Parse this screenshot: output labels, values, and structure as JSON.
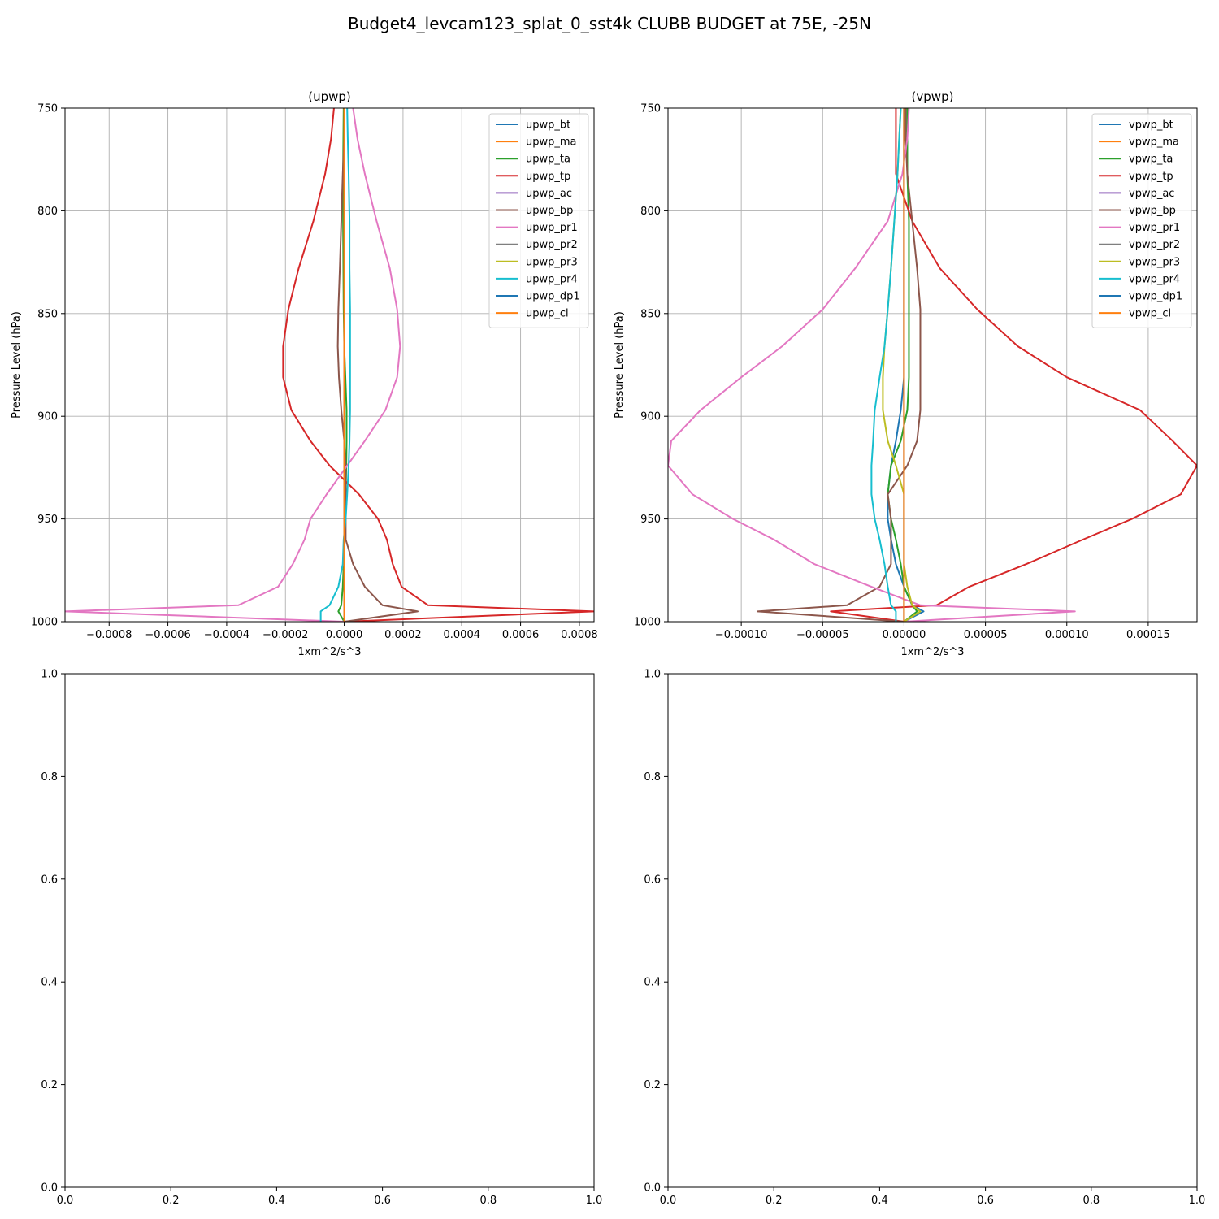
{
  "figure": {
    "suptitle": "Budget4_levcam123_splat_0_sst4k CLUBB BUDGET at 75E, -25N"
  },
  "colors": [
    "#1f77b4",
    "#ff7f0e",
    "#2ca02c",
    "#d62728",
    "#9467bd",
    "#8c564b",
    "#e377c2",
    "#7f7f7f",
    "#bcbd22",
    "#17becf",
    "#1f77b4",
    "#ff7f0e"
  ],
  "chart_data": [
    {
      "type": "line",
      "title": "(upwp)",
      "xlabel": "1xm^2/s^3",
      "ylabel": "Pressure Level (hPa)",
      "xlim": [
        -0.00095,
        0.00085
      ],
      "ylim": [
        1000,
        750
      ],
      "y_inverted": true,
      "grid": true,
      "legend": "top-right",
      "xticks": [
        -0.0008,
        -0.0006,
        -0.0004,
        -0.0002,
        0.0,
        0.0002,
        0.0004,
        0.0006,
        0.0008
      ],
      "xtick_labels": [
        "−0.0008",
        "−0.0006",
        "−0.0004",
        "−0.0002",
        "0.0000",
        "0.0002",
        "0.0004",
        "0.0006",
        "0.0008"
      ],
      "yticks": [
        750,
        800,
        850,
        900,
        950,
        1000
      ],
      "ytick_labels": [
        "750",
        "800",
        "850",
        "900",
        "950",
        "1000"
      ],
      "levels": [
        750,
        765,
        782,
        805,
        828,
        848,
        866,
        881,
        897,
        912,
        924,
        938,
        950,
        960,
        972,
        983,
        992,
        995,
        1000
      ],
      "series": [
        {
          "name": "upwp_bt",
          "values": [
            0,
            0,
            0,
            0,
            0,
            0,
            0,
            0,
            0,
            0,
            0,
            0,
            0,
            0,
            0,
            0,
            0,
            0,
            0
          ]
        },
        {
          "name": "upwp_ma",
          "values": [
            0,
            0,
            0,
            0,
            0,
            0,
            0,
            0,
            0,
            0,
            0,
            0,
            0,
            0,
            0,
            0,
            0,
            0,
            0
          ]
        },
        {
          "name": "upwp_ta",
          "values": [
            -2e-06,
            -3e-06,
            -4e-06,
            -4e-06,
            -3e-06,
            -2e-06,
            0,
            4e-06,
            8e-06,
            8e-06,
            7e-06,
            5e-06,
            2e-06,
            0,
            -2e-06,
            -5e-06,
            -1e-05,
            -2e-05,
            0
          ]
        },
        {
          "name": "upwp_tp",
          "values": [
            -3.5e-05,
            -4.5e-05,
            -6.5e-05,
            -0.000105,
            -0.000155,
            -0.00019,
            -0.000208,
            -0.000208,
            -0.00018,
            -0.000115,
            -5e-05,
            5e-05,
            0.000115,
            0.000145,
            0.000165,
            0.000195,
            0.000285,
            0.00085,
            0
          ]
        },
        {
          "name": "upwp_ac",
          "values": [
            0,
            0,
            0,
            0,
            0,
            0,
            0,
            0,
            0,
            0,
            0,
            0,
            0,
            0,
            0,
            0,
            0,
            0,
            0
          ]
        },
        {
          "name": "upwp_bp",
          "values": [
            0,
            0,
            -5e-06,
            -1e-05,
            -1.5e-05,
            -2e-05,
            -2.2e-05,
            -1.8e-05,
            -1e-05,
            0,
            5e-06,
            5e-06,
            5e-06,
            5e-06,
            3e-05,
            7e-05,
            0.00013,
            0.00025,
            0
          ]
        },
        {
          "name": "upwp_pr1",
          "values": [
            3e-05,
            4.5e-05,
            7e-05,
            0.00011,
            0.000155,
            0.00018,
            0.00019,
            0.00018,
            0.00014,
            7e-05,
            1e-05,
            -6e-05,
            -0.000115,
            -0.000135,
            -0.000175,
            -0.000225,
            -0.00036,
            -0.00095,
            0
          ]
        },
        {
          "name": "upwp_pr2",
          "values": [
            0,
            0,
            0,
            0,
            0,
            0,
            0,
            0,
            0,
            0,
            0,
            0,
            0,
            0,
            0,
            0,
            0,
            0,
            0
          ]
        },
        {
          "name": "upwp_pr3",
          "values": [
            0,
            0,
            0,
            0,
            0,
            0,
            0,
            0,
            0,
            0,
            0,
            0,
            0,
            0,
            0,
            0,
            0,
            0,
            0
          ]
        },
        {
          "name": "upwp_pr4",
          "values": [
            1e-05,
            1.2e-05,
            1.5e-05,
            1.8e-05,
            1.8e-05,
            2e-05,
            2e-05,
            2e-05,
            2e-05,
            1.8e-05,
            1.5e-05,
            1e-05,
            5e-06,
            -2e-06,
            -5e-06,
            -2e-05,
            -5e-05,
            -8e-05,
            -8e-05
          ]
        },
        {
          "name": "upwp_dp1",
          "values": [
            0,
            0,
            0,
            0,
            0,
            0,
            0,
            0,
            0,
            0,
            0,
            0,
            0,
            0,
            0,
            0,
            0,
            0,
            0
          ]
        },
        {
          "name": "upwp_cl",
          "values": [
            0,
            0,
            0,
            0,
            0,
            0,
            0,
            0,
            0,
            0,
            0,
            0,
            0,
            0,
            0,
            0,
            0,
            0,
            0
          ]
        }
      ]
    },
    {
      "type": "line",
      "title": "(vpwp)",
      "xlabel": "1xm^2/s^3",
      "ylabel": "Pressure Level (hPa)",
      "xlim": [
        -0.000145,
        0.00018
      ],
      "ylim": [
        1000,
        750
      ],
      "y_inverted": true,
      "grid": true,
      "legend": "top-right",
      "xticks": [
        -0.0001,
        -5e-05,
        0.0,
        5e-05,
        0.0001,
        0.00015
      ],
      "xtick_labels": [
        "−0.00010",
        "−0.00005",
        "0.00000",
        "0.00005",
        "0.00010",
        "0.00015"
      ],
      "yticks": [
        750,
        800,
        850,
        900,
        950,
        1000
      ],
      "ytick_labels": [
        "750",
        "800",
        "850",
        "900",
        "950",
        "1000"
      ],
      "levels": [
        750,
        765,
        782,
        805,
        828,
        848,
        866,
        881,
        897,
        912,
        924,
        938,
        950,
        960,
        972,
        983,
        992,
        995,
        1000
      ],
      "series": [
        {
          "name": "vpwp_bt",
          "values": [
            0,
            0,
            0,
            0,
            0,
            0,
            0,
            0,
            -2e-06,
            -5e-06,
            -8e-06,
            -1e-05,
            -1e-05,
            -8e-06,
            -5e-06,
            0,
            5e-06,
            1.2e-05,
            0
          ]
        },
        {
          "name": "vpwp_ma",
          "values": [
            0,
            0,
            0,
            0,
            0,
            0,
            0,
            0,
            0,
            0,
            0,
            0,
            0,
            0,
            0,
            0,
            0,
            0,
            0
          ]
        },
        {
          "name": "vpwp_ta",
          "values": [
            2e-06,
            2e-06,
            2e-06,
            3e-06,
            3e-06,
            3e-06,
            3e-06,
            3e-06,
            2e-06,
            -2e-06,
            -8e-06,
            -1e-05,
            -8e-06,
            -5e-06,
            -2e-06,
            0,
            5e-06,
            8e-06,
            0
          ]
        },
        {
          "name": "vpwp_tp",
          "values": [
            -5e-06,
            -5e-06,
            -5e-06,
            5e-06,
            2.2e-05,
            4.5e-05,
            7e-05,
            0.0001,
            0.000145,
            0.000165,
            0.00018,
            0.00017,
            0.00014,
            0.00011,
            7.5e-05,
            4e-05,
            2e-05,
            -4.5e-05,
            0
          ]
        },
        {
          "name": "vpwp_ac",
          "values": [
            0,
            0,
            0,
            0,
            0,
            0,
            0,
            0,
            0,
            0,
            0,
            0,
            0,
            0,
            0,
            0,
            0,
            0,
            0
          ]
        },
        {
          "name": "vpwp_bp",
          "values": [
            1e-06,
            1e-06,
            2e-06,
            5e-06,
            8e-06,
            1e-05,
            1e-05,
            1e-05,
            1e-05,
            8e-06,
            2e-06,
            -1e-05,
            -8e-06,
            -8e-06,
            -8e-06,
            -1.5e-05,
            -3.5e-05,
            -9e-05,
            0
          ]
        },
        {
          "name": "vpwp_pr1",
          "values": [
            3e-06,
            2e-06,
            -1e-06,
            -1e-05,
            -3e-05,
            -5e-05,
            -7.5e-05,
            -0.0001,
            -0.000125,
            -0.000143,
            -0.000145,
            -0.00013,
            -0.000105,
            -8e-05,
            -5.5e-05,
            -2e-05,
            1e-05,
            0.000105,
            0
          ]
        },
        {
          "name": "vpwp_pr2",
          "values": [
            0,
            0,
            0,
            0,
            0,
            0,
            0,
            0,
            0,
            0,
            0,
            0,
            0,
            0,
            0,
            0,
            0,
            0,
            0
          ]
        },
        {
          "name": "vpwp_pr3",
          "values": [
            -2e-06,
            -3e-06,
            -4e-06,
            -6e-06,
            -8e-06,
            -1e-05,
            -1.2e-05,
            -1.3e-05,
            -1.3e-05,
            -1e-05,
            -5e-06,
            0,
            0,
            0,
            0,
            2e-06,
            5e-06,
            1e-05,
            0
          ]
        },
        {
          "name": "vpwp_pr4",
          "values": [
            -2e-06,
            -3e-06,
            -4e-06,
            -6e-06,
            -8e-06,
            -1e-05,
            -1.2e-05,
            -1.5e-05,
            -1.8e-05,
            -1.9e-05,
            -2e-05,
            -2e-05,
            -1.8e-05,
            -1.5e-05,
            -1.2e-05,
            -1e-05,
            -8e-06,
            -5e-06,
            -5e-06
          ]
        },
        {
          "name": "vpwp_dp1",
          "values": [
            0,
            0,
            0,
            0,
            0,
            0,
            0,
            0,
            0,
            0,
            0,
            0,
            0,
            0,
            0,
            0,
            0,
            0,
            0
          ]
        },
        {
          "name": "vpwp_cl",
          "values": [
            0,
            0,
            0,
            0,
            0,
            0,
            0,
            0,
            0,
            0,
            0,
            0,
            0,
            0,
            0,
            0,
            0,
            0,
            0
          ]
        }
      ]
    },
    {
      "type": "line",
      "title": "",
      "xlim": [
        0,
        1
      ],
      "ylim": [
        0,
        1
      ],
      "grid": false,
      "xticks": [
        0.0,
        0.2,
        0.4,
        0.6,
        0.8,
        1.0
      ],
      "xtick_labels": [
        "0.0",
        "0.2",
        "0.4",
        "0.6",
        "0.8",
        "1.0"
      ],
      "yticks": [
        0.0,
        0.2,
        0.4,
        0.6,
        0.8,
        1.0
      ],
      "ytick_labels": [
        "0.0",
        "0.2",
        "0.4",
        "0.6",
        "0.8",
        "1.0"
      ],
      "series": []
    },
    {
      "type": "line",
      "title": "",
      "xlim": [
        0,
        1
      ],
      "ylim": [
        0,
        1
      ],
      "grid": false,
      "xticks": [
        0.0,
        0.2,
        0.4,
        0.6,
        0.8,
        1.0
      ],
      "xtick_labels": [
        "0.0",
        "0.2",
        "0.4",
        "0.6",
        "0.8",
        "1.0"
      ],
      "yticks": [
        0.0,
        0.2,
        0.4,
        0.6,
        0.8,
        1.0
      ],
      "ytick_labels": [
        "0.0",
        "0.2",
        "0.4",
        "0.6",
        "0.8",
        "1.0"
      ],
      "series": []
    }
  ]
}
